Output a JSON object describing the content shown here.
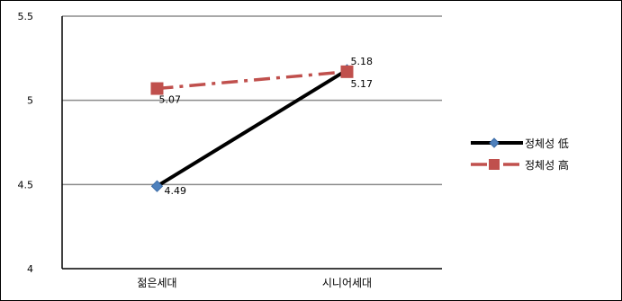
{
  "chart_data": {
    "type": "line",
    "categories": [
      "젊은세대",
      "시니어세대"
    ],
    "series": [
      {
        "name": "정체성 低",
        "values": [
          4.49,
          5.18
        ],
        "labels": [
          "4.49",
          "5.18"
        ],
        "color": "#000000",
        "marker_color": "#4F81BD",
        "marker": "diamond",
        "line_style": "solid"
      },
      {
        "name": "정체성 高",
        "values": [
          5.07,
          5.17
        ],
        "labels": [
          "5.07",
          "5.17"
        ],
        "color": "#C0504D",
        "marker_color": "#C0504D",
        "marker": "square",
        "line_style": "dash-dot"
      }
    ],
    "ylim": [
      4,
      5.5
    ],
    "yticks": [
      4,
      4.5,
      5,
      5.5
    ],
    "ytick_labels": [
      "4",
      "4.5",
      "5",
      "5.5"
    ],
    "gridlines": true,
    "legend_position": "right",
    "title": "",
    "xlabel": "",
    "ylabel": ""
  }
}
